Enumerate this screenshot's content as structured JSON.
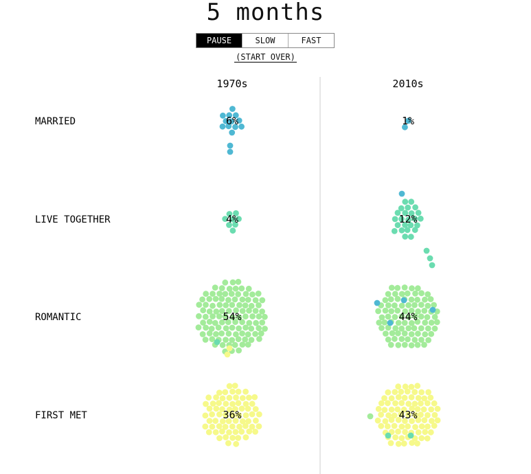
{
  "title": "5 months",
  "controls": {
    "buttons": [
      {
        "label": "PAUSE",
        "active": true
      },
      {
        "label": "SLOW",
        "active": false
      },
      {
        "label": "FAST",
        "active": false
      }
    ],
    "start_over": "(START OVER)"
  },
  "colors": {
    "married": "#4fb8d3",
    "live_together": "#6bdcb0",
    "romantic": "#a3eb9a",
    "first_met": "#f6f98a",
    "divider": "#cccccc"
  },
  "chart_data": {
    "type": "scatter",
    "columns": [
      "1970s",
      "2010s"
    ],
    "rows": [
      "MARRIED",
      "LIVE TOGETHER",
      "ROMANTIC",
      "FIRST MET"
    ],
    "percent": {
      "1970s": [
        6,
        4,
        54,
        36
      ],
      "2010s": [
        1,
        12,
        44,
        43
      ]
    },
    "labels": {
      "1970s": [
        "6%",
        "4%",
        "54%",
        "36%"
      ],
      "2010s": [
        "1%",
        "12%",
        "44%",
        "43%"
      ]
    }
  }
}
